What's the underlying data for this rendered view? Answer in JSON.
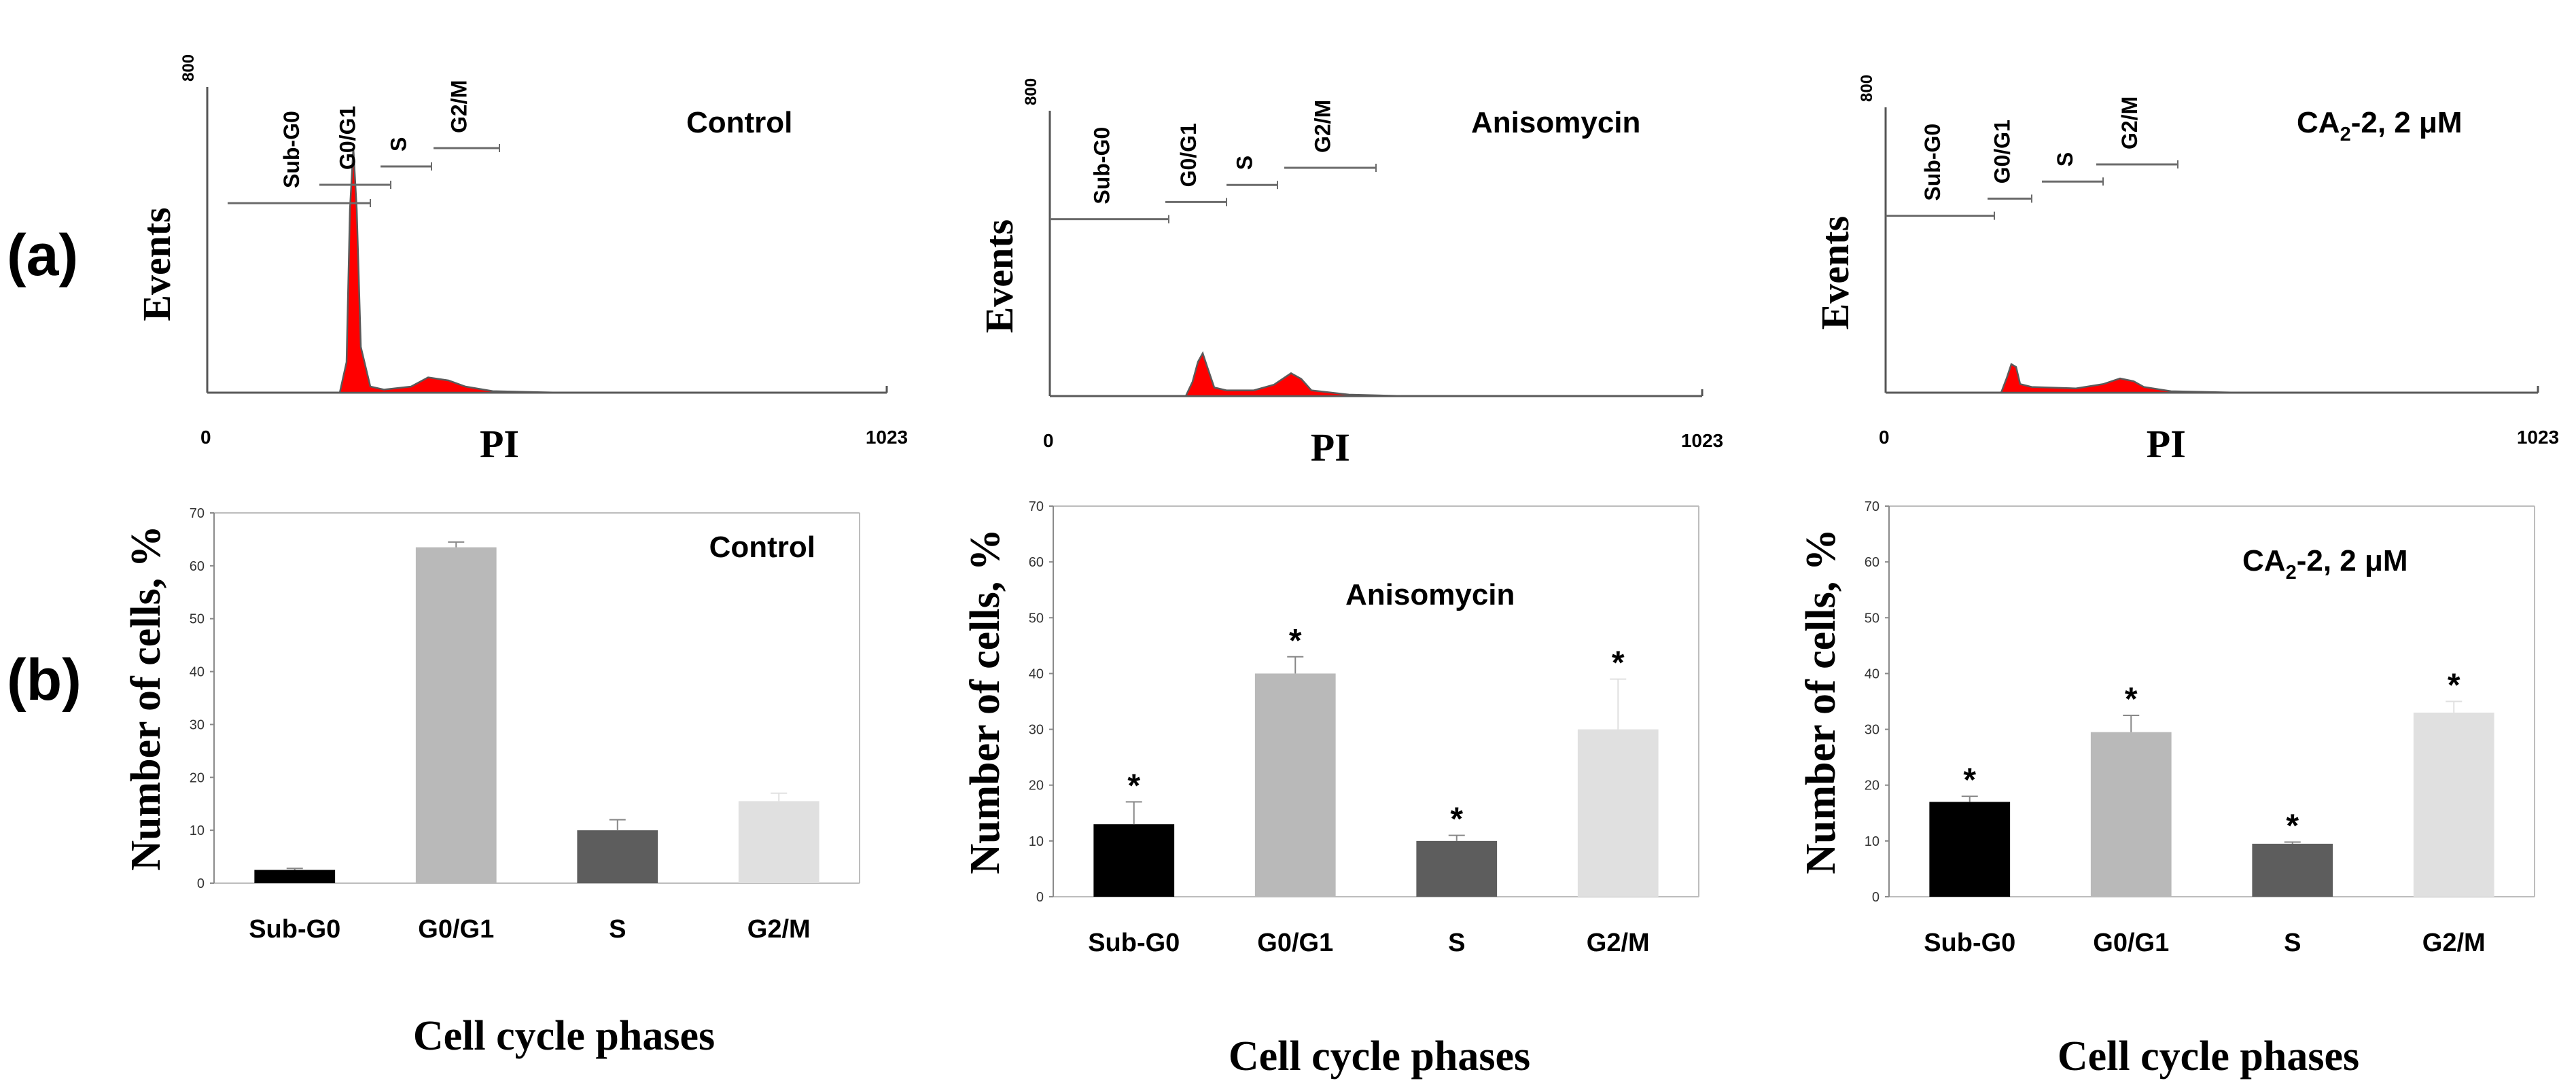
{
  "figure": {
    "label_a": "(a)",
    "label_b": "(b)"
  },
  "panels": [
    {
      "title": "Control",
      "title_main": "Control",
      "title_sub": "",
      "title_tail": "",
      "histogram": {
        "ylabel": "Events",
        "xlabel": "PI",
        "y_max": "800",
        "x_min": "0",
        "x_max": "1023",
        "gates": [
          "Sub-G0",
          "G0/G1",
          "S",
          "G2/M"
        ]
      }
    },
    {
      "title": "Anisomycin",
      "title_main": "Anisomycin",
      "title_sub": "",
      "title_tail": "",
      "histogram": {
        "ylabel": "Events",
        "xlabel": "PI",
        "y_max": "800",
        "x_min": "0",
        "x_max": "1023",
        "gates": [
          "Sub-G0",
          "G0/G1",
          "S",
          "G2/M"
        ]
      }
    },
    {
      "title": "CA2-2, 2 μM",
      "title_main": "CA",
      "title_sub": "2",
      "title_tail": "-2, 2 μM",
      "histogram": {
        "ylabel": "Events",
        "xlabel": "PI",
        "y_max": "800",
        "x_min": "0",
        "x_max": "1023",
        "gates": [
          "Sub-G0",
          "G0/G1",
          "S",
          "G2/M"
        ]
      }
    }
  ],
  "chart_data": [
    {
      "type": "bar",
      "title": "Control",
      "categories": [
        "Sub-G0",
        "G0/G1",
        "S",
        "G2/M"
      ],
      "values": [
        2.5,
        63.5,
        10,
        15.5
      ],
      "errors": [
        0.3,
        1,
        2,
        1.5
      ],
      "significance": [
        "",
        "",
        "",
        ""
      ],
      "colors": [
        "#000000",
        "#b9b9b9",
        "#5d5d5d",
        "#e0e0e0"
      ],
      "xlabel": "Cell cycle phases",
      "ylabel": "Number of cells, %",
      "ylim": [
        0,
        70
      ],
      "yticks": [
        "0",
        "10",
        "20",
        "30",
        "40",
        "50",
        "60",
        "70"
      ]
    },
    {
      "type": "bar",
      "title": "Anisomycin",
      "categories": [
        "Sub-G0",
        "G0/G1",
        "S",
        "G2/M"
      ],
      "values": [
        13,
        40,
        10,
        30
      ],
      "errors": [
        4,
        3,
        1,
        9
      ],
      "significance": [
        "*",
        "*",
        "*",
        "*"
      ],
      "colors": [
        "#000000",
        "#b9b9b9",
        "#5d5d5d",
        "#e0e0e0"
      ],
      "xlabel": "Cell cycle phases",
      "ylabel": "Number of cells, %",
      "ylim": [
        0,
        70
      ],
      "yticks": [
        "0",
        "10",
        "20",
        "30",
        "40",
        "50",
        "60",
        "70"
      ]
    },
    {
      "type": "bar",
      "title": "CA2-2, 2 μM",
      "categories": [
        "Sub-G0",
        "G0/G1",
        "S",
        "G2/M"
      ],
      "values": [
        17,
        29.5,
        9.5,
        33
      ],
      "errors": [
        1,
        3,
        0.3,
        2
      ],
      "significance": [
        "*",
        "*",
        "*",
        "*"
      ],
      "colors": [
        "#000000",
        "#b9b9b9",
        "#5d5d5d",
        "#e0e0e0"
      ],
      "xlabel": "Cell cycle phases",
      "ylabel": "Number of cells, %",
      "ylim": [
        0,
        70
      ],
      "yticks": [
        "0",
        "10",
        "20",
        "30",
        "40",
        "50",
        "60",
        "70"
      ]
    }
  ]
}
